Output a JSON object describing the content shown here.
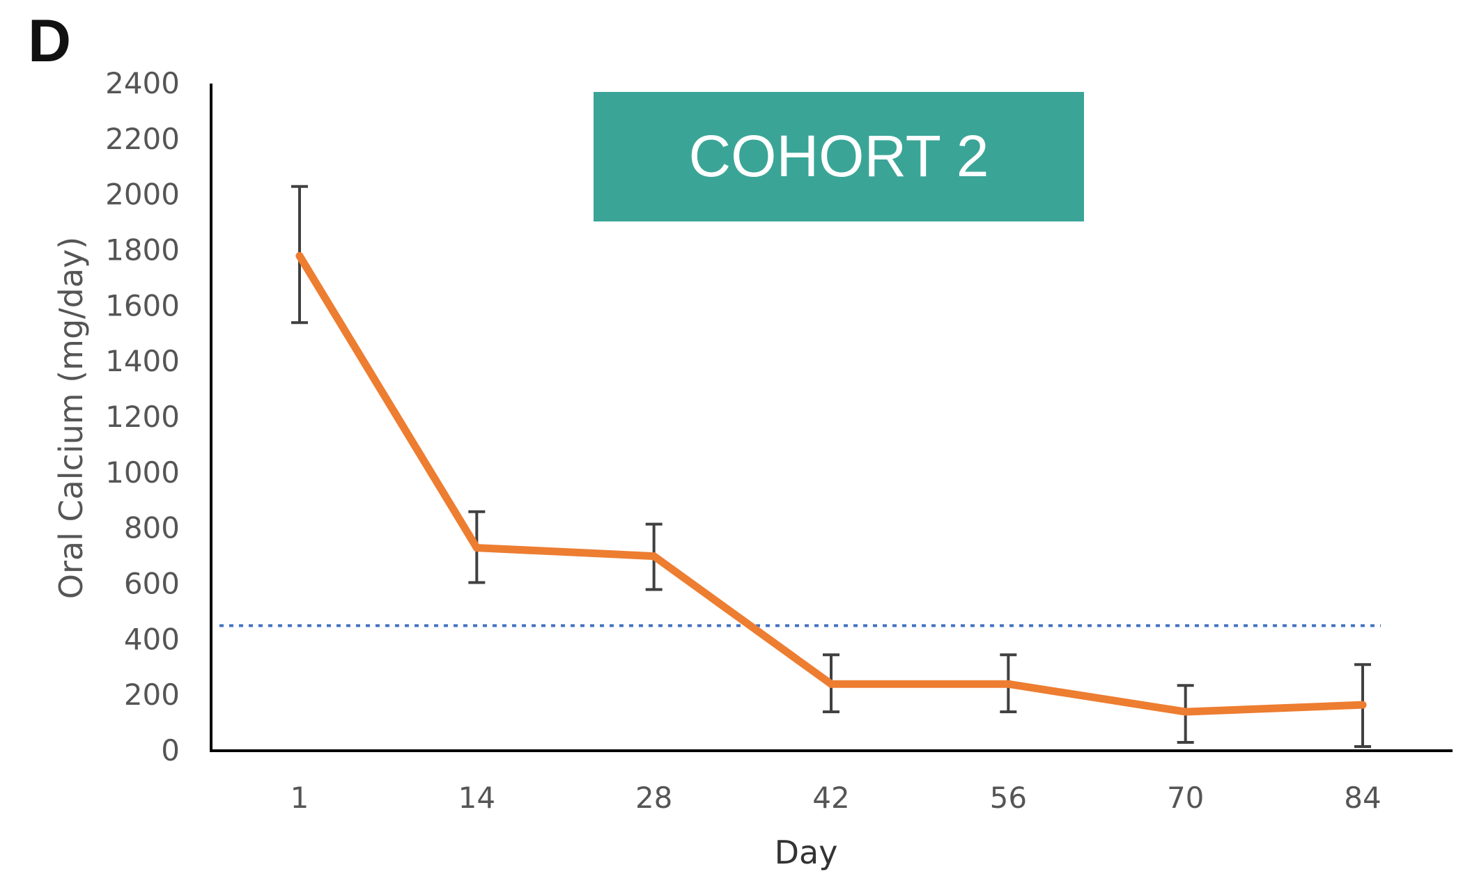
{
  "panel_label": "D",
  "colors": {
    "line": "#ED7D31",
    "error_bar": "#404040",
    "threshold": "#4472C4",
    "cohort_box": "#3AA597",
    "axis": "#000000"
  },
  "chart_data": {
    "type": "line",
    "annotation": "COHORT 2",
    "xlabel": "Day",
    "ylabel": "Oral Calcium (mg/day)",
    "categories": [
      "1",
      "14",
      "28",
      "42",
      "56",
      "70",
      "84"
    ],
    "series": [
      {
        "values": [
          1780,
          730,
          700,
          240,
          240,
          140,
          165
        ],
        "error_low": [
          1540,
          605,
          580,
          140,
          140,
          30,
          15
        ],
        "error_high": [
          2030,
          860,
          815,
          345,
          345,
          235,
          310
        ]
      }
    ],
    "threshold": 450,
    "ylim": [
      0,
      2400
    ],
    "yticks": [
      "0",
      "200",
      "400",
      "600",
      "800",
      "1000",
      "1200",
      "1400",
      "1600",
      "1800",
      "2000",
      "2200",
      "2400"
    ],
    "grid": false
  }
}
